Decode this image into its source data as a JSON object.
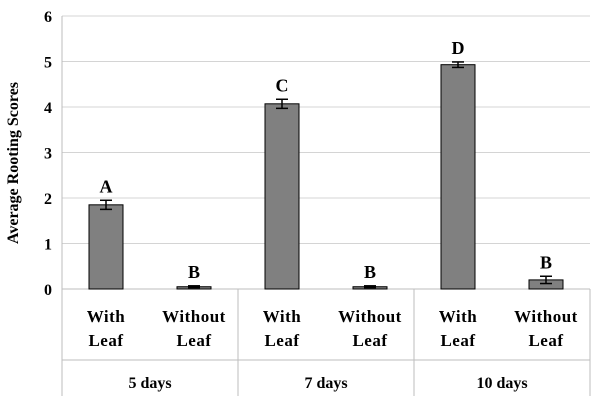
{
  "chart_data": {
    "type": "bar",
    "ylabel": "Average Rooting Scores",
    "ylim": [
      0,
      6
    ],
    "yticks": [
      0,
      1,
      2,
      3,
      4,
      5,
      6
    ],
    "grid": true,
    "bars": [
      {
        "category": [
          "With",
          "Leaf"
        ],
        "group": "5 days",
        "value": 1.85,
        "error": 0.1,
        "label": "A"
      },
      {
        "category": [
          "Without",
          "Leaf"
        ],
        "group": "5 days",
        "value": 0.05,
        "error": 0.02,
        "label": "B"
      },
      {
        "category": [
          "With",
          "Leaf"
        ],
        "group": "7 days",
        "value": 4.07,
        "error": 0.1,
        "label": "C"
      },
      {
        "category": [
          "Without",
          "Leaf"
        ],
        "group": "7 days",
        "value": 0.05,
        "error": 0.02,
        "label": "B"
      },
      {
        "category": [
          "With",
          "Leaf"
        ],
        "group": "10 days",
        "value": 4.93,
        "error": 0.06,
        "label": "D"
      },
      {
        "category": [
          "Without",
          "Leaf"
        ],
        "group": "10 days",
        "value": 0.2,
        "error": 0.08,
        "label": "B"
      }
    ],
    "groups": [
      "5 days",
      "7 days",
      "10 days"
    ],
    "colors": {
      "bar_fill": "#808080",
      "bar_stroke": "#000000",
      "grid": "#d4d4d4",
      "axis": "#bdbdbd"
    }
  }
}
